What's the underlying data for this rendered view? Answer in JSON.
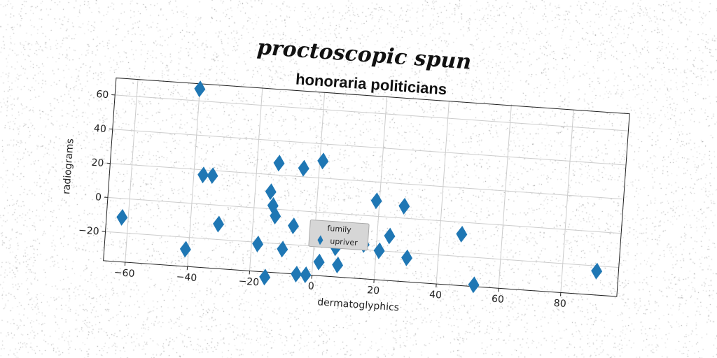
{
  "suptitle": "proctoscopic spun",
  "chart_data": {
    "type": "scatter",
    "title": "honoraria politicians",
    "xlabel": "dermatoglyphics",
    "ylabel": "radiograms",
    "xlim": [
      -67,
      98
    ],
    "ylim": [
      -37,
      70
    ],
    "xticks": [
      -60,
      -40,
      -20,
      0,
      20,
      40,
      60,
      80
    ],
    "yticks": [
      -20,
      0,
      20,
      40,
      60
    ],
    "xtick_labels": [
      "−60",
      "−40",
      "−20",
      "0",
      "20",
      "40",
      "60",
      "80"
    ],
    "ytick_labels": [
      "−20",
      "0",
      "20",
      "40",
      "60"
    ],
    "grid": true,
    "legend": {
      "title": "fumily",
      "placement": "lower-center",
      "entries": [
        "upriver"
      ]
    },
    "series": [
      {
        "name": "upriver",
        "color": "#1f77b4",
        "marker": "diamond",
        "x": [
          -40,
          -37,
          -34,
          -31,
          -62,
          -41,
          -13,
          -5,
          -15,
          -14,
          -13,
          -7,
          -18,
          -10,
          -5,
          -2,
          1,
          2,
          7,
          4,
          16,
          21,
          24,
          28,
          30,
          47,
          52,
          91,
          19,
          -15,
          8
        ],
        "y": [
          67,
          17,
          17,
          -11,
          -11,
          -27,
          27,
          25,
          10,
          2,
          -4,
          -9,
          -21,
          -23,
          -37,
          -37,
          30,
          -29,
          -20,
          -15,
          -17,
          -20,
          -11,
          7,
          -23,
          -7,
          -36,
          -23,
          9,
          -40,
          -30
        ]
      }
    ]
  }
}
